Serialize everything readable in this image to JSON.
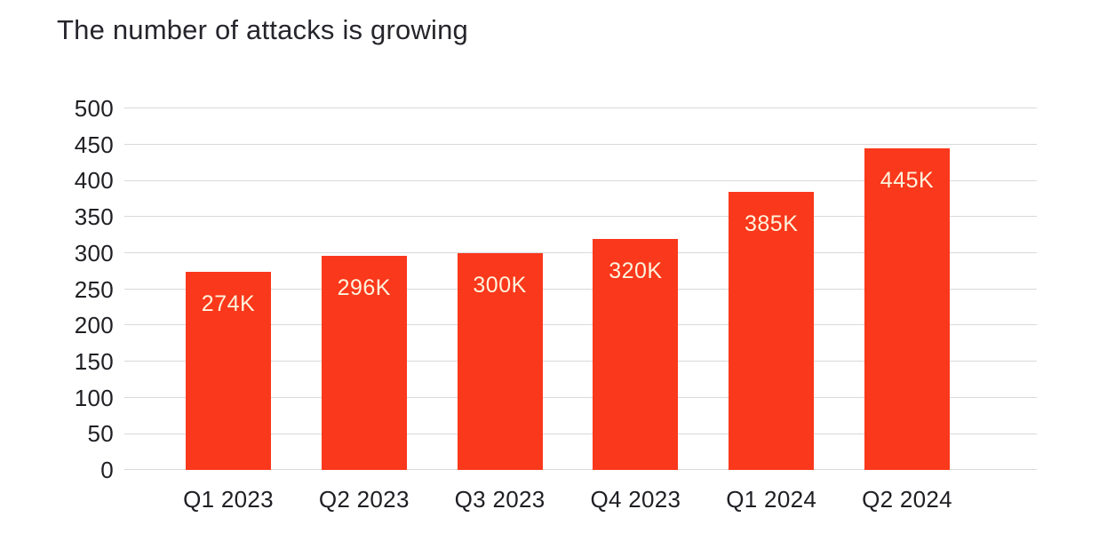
{
  "chart_data": {
    "type": "bar",
    "title": "The number of attacks is growing",
    "categories": [
      "Q1 2023",
      "Q2 2023",
      "Q3 2023",
      "Q4 2023",
      "Q1 2024",
      "Q2 2024"
    ],
    "values": [
      274,
      296,
      300,
      320,
      385,
      445
    ],
    "bar_labels": [
      "274K",
      "296K",
      "300K",
      "320K",
      "385K",
      "445K"
    ],
    "value_unit": "K",
    "xlabel": "",
    "ylabel": "",
    "ylim": [
      0,
      500
    ],
    "yticks": [
      0,
      50,
      100,
      150,
      200,
      250,
      300,
      350,
      400,
      450,
      500
    ],
    "grid": "horizontal",
    "legend": "none",
    "colors": {
      "bar": "#FA381C",
      "bar_label": "#FDF3DC",
      "title": "#26252C",
      "axis_text": "#1F1E23",
      "gridline": "#D9D9D9",
      "background": "#FFFFFF"
    }
  }
}
